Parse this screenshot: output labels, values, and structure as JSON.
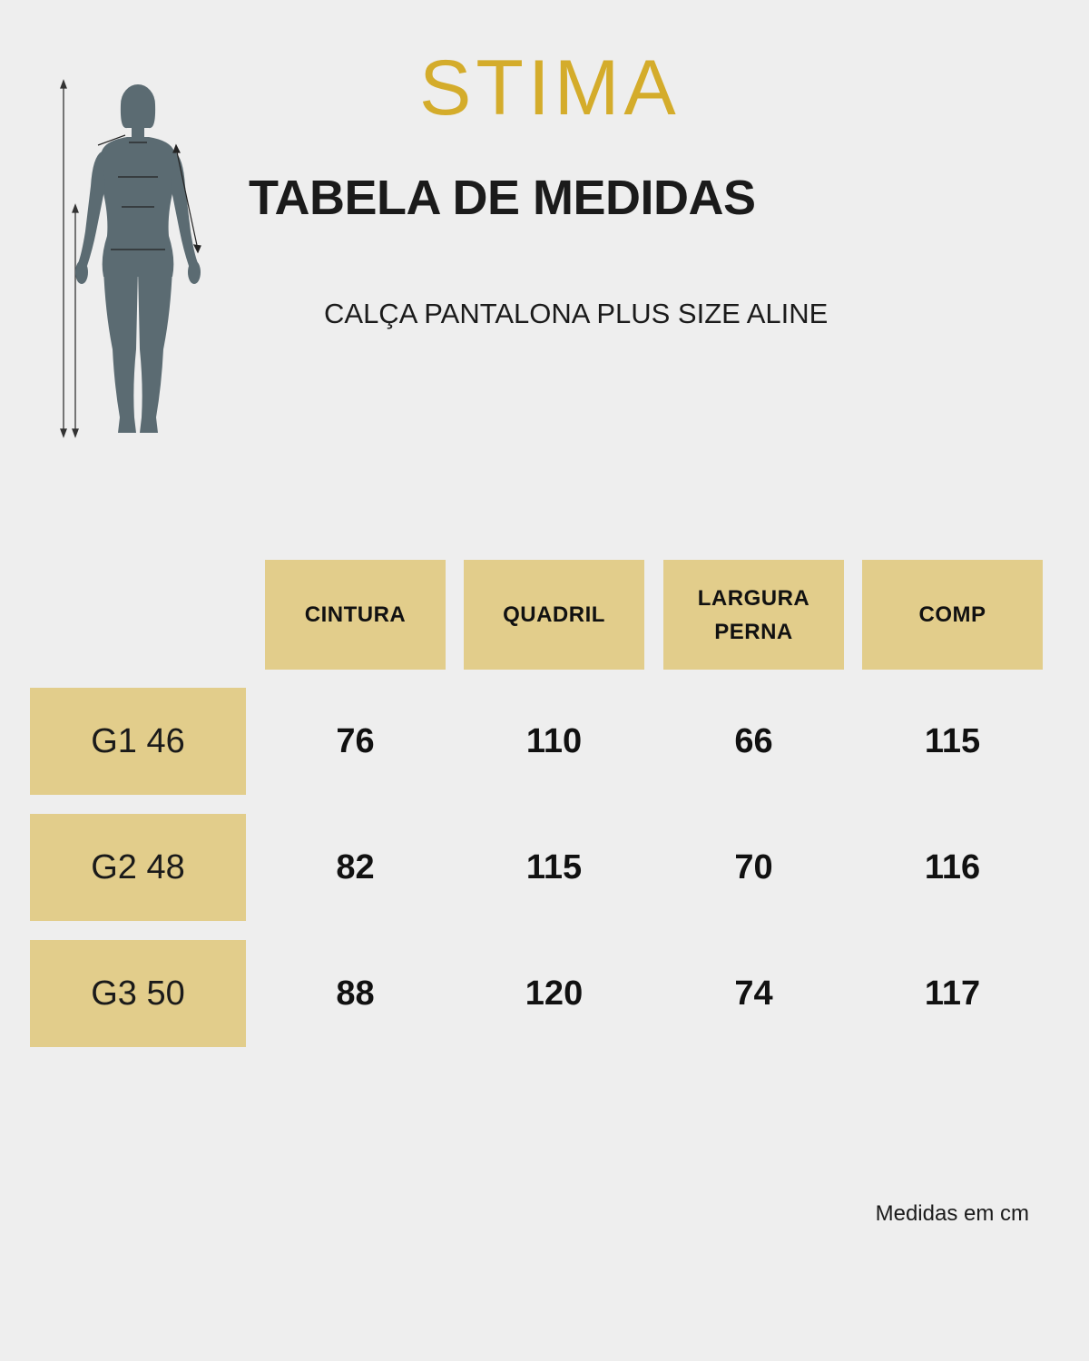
{
  "brand": {
    "logo_text": "STIMA",
    "logo_color": "#d4ac2b"
  },
  "title": "TABELA DE MEDIDAS",
  "subtitle": "CALÇA PANTALONA PLUS SIZE ALINE",
  "colors": {
    "background": "#eeeeee",
    "cell_fill": "#e2cd8b",
    "figure": "#5b6b72"
  },
  "table": {
    "headers": [
      {
        "line1": "CINTURA",
        "line2": ""
      },
      {
        "line1": "QUADRIL",
        "line2": ""
      },
      {
        "line1": "LARGURA",
        "line2": "PERNA"
      },
      {
        "line1": "COMP",
        "line2": ""
      }
    ],
    "rows": [
      {
        "size": "G1 46",
        "values": [
          "76",
          "110",
          "66",
          "115"
        ]
      },
      {
        "size": "G2 48",
        "values": [
          "82",
          "115",
          "70",
          "116"
        ]
      },
      {
        "size": "G3 50",
        "values": [
          "88",
          "120",
          "74",
          "117"
        ]
      }
    ]
  },
  "footer": "Medidas em cm"
}
